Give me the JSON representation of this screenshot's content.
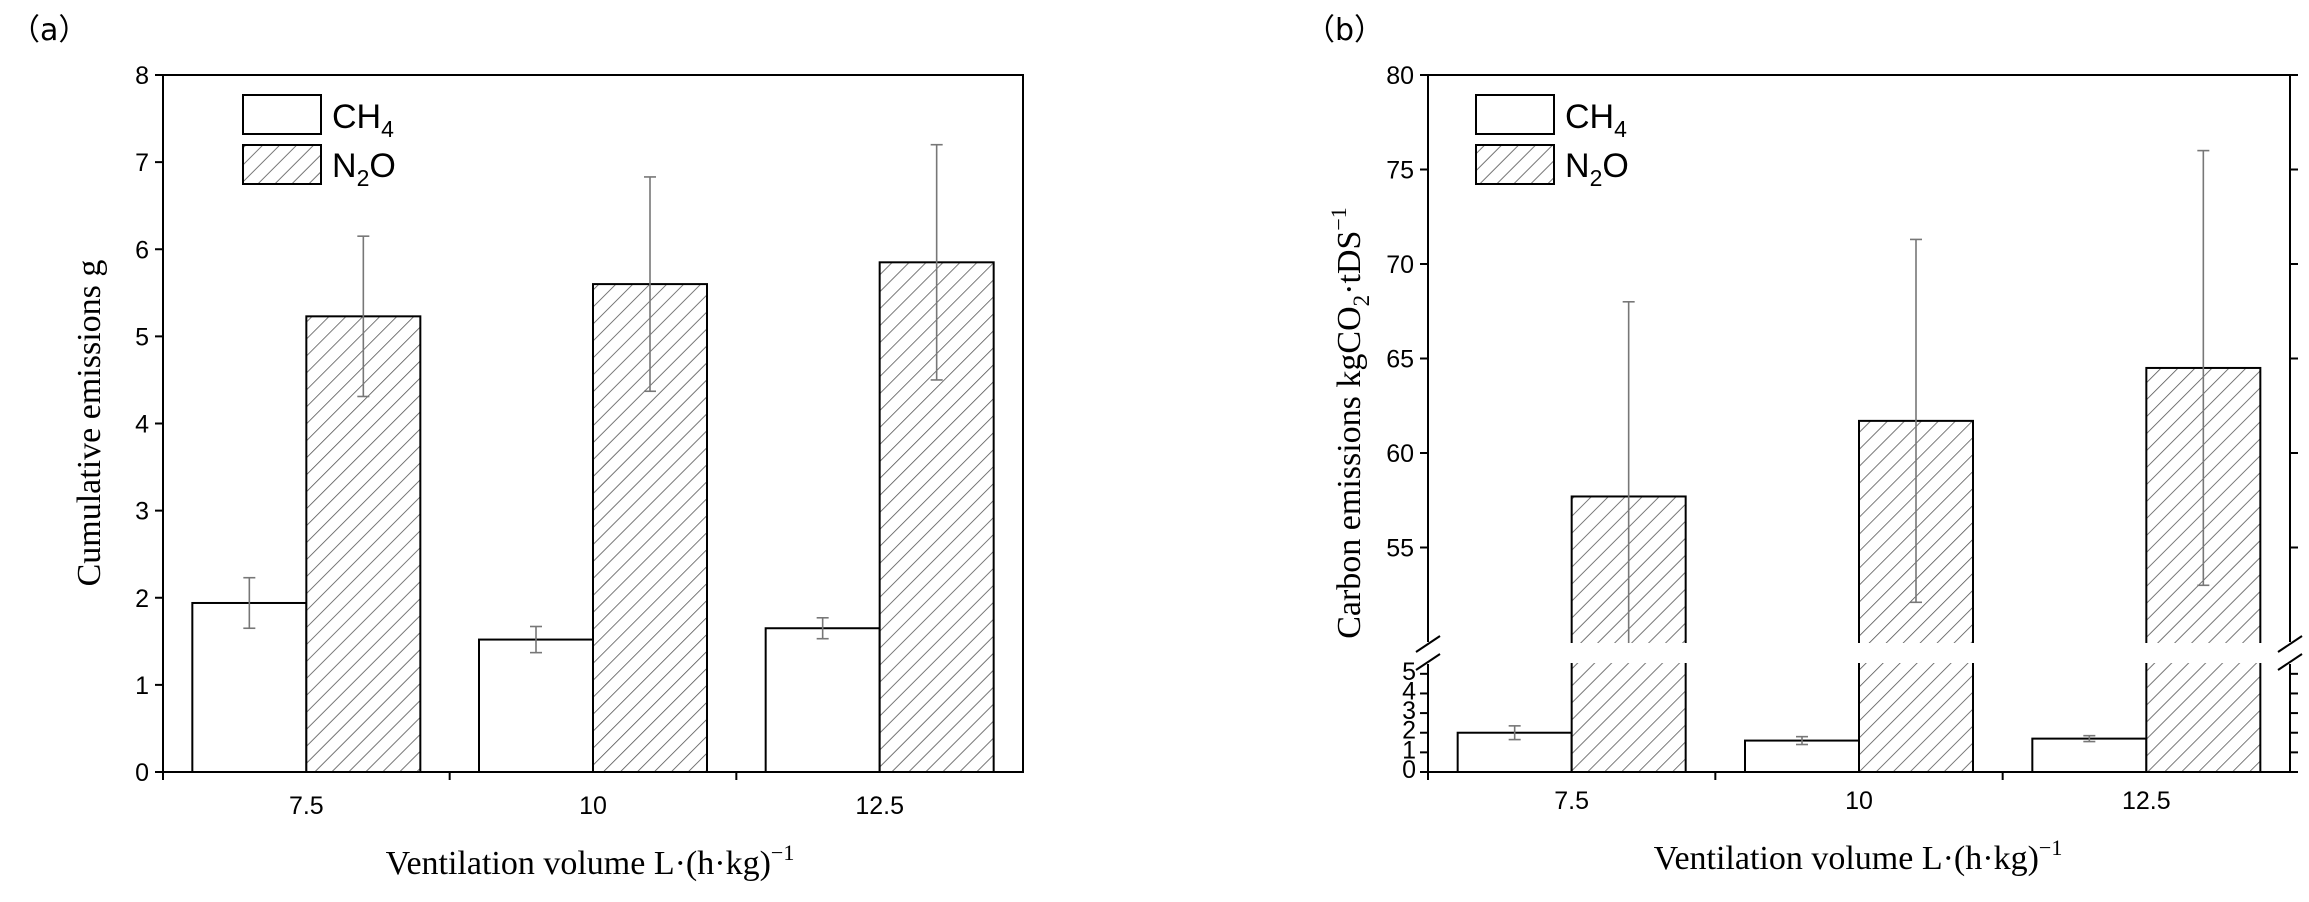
{
  "chart_data": [
    {
      "panel_label": "（a）",
      "type": "bar",
      "categories": [
        "7.5",
        "10",
        "12.5"
      ],
      "series": [
        {
          "name": "CH4",
          "name_main": "CH",
          "name_sub": "4",
          "values": [
            1.94,
            1.52,
            1.65
          ],
          "errors": [
            0.29,
            0.15,
            0.12
          ],
          "pattern": "solid-white"
        },
        {
          "name": "N2O",
          "name_main": "N",
          "name_sub": "2",
          "name_tail": "O",
          "values": [
            5.23,
            5.6,
            5.85
          ],
          "errors": [
            0.92,
            1.23,
            1.35
          ],
          "pattern": "diagonal-hatch"
        }
      ],
      "xlabel": {
        "main": "Ventilation volume L·(h·kg)",
        "sup": "−1"
      },
      "ylabel": "Cumulative emissions g",
      "ylim": [
        0,
        8
      ],
      "yticks": [
        "0",
        "1",
        "2",
        "3",
        "4",
        "5",
        "6",
        "7",
        "8"
      ],
      "legend_position": "top-left",
      "grid": false
    },
    {
      "panel_label": "（b）",
      "type": "bar",
      "categories": [
        "7.5",
        "10",
        "12.5"
      ],
      "series": [
        {
          "name": "CH4",
          "name_main": "CH",
          "name_sub": "4",
          "values": [
            2.0,
            1.6,
            1.7
          ],
          "errors": [
            0.35,
            0.2,
            0.15
          ],
          "pattern": "solid-white"
        },
        {
          "name": "N2O",
          "name_main": "N",
          "name_sub": "2",
          "name_tail": "O",
          "values": [
            57.7,
            61.7,
            64.5
          ],
          "errors": [
            10.3,
            9.6,
            11.5
          ],
          "pattern": "diagonal-hatch"
        }
      ],
      "xlabel": {
        "main": "Ventilation volume L·(h·kg)",
        "sup": "−1"
      },
      "ylabel": {
        "main": "Carbon emissions kgCO",
        "sub": "2",
        "mid": "·tDS",
        "sup": "−1"
      },
      "y_axis_break": {
        "lower_range": [
          0,
          5.5
        ],
        "upper_range": [
          50,
          80
        ]
      },
      "yticks_lower": [
        "0",
        "1",
        "2",
        "3",
        "4",
        "5"
      ],
      "yticks_upper": [
        "55",
        "60",
        "65",
        "70",
        "75",
        "80"
      ],
      "legend_position": "top-left",
      "grid": false
    }
  ]
}
